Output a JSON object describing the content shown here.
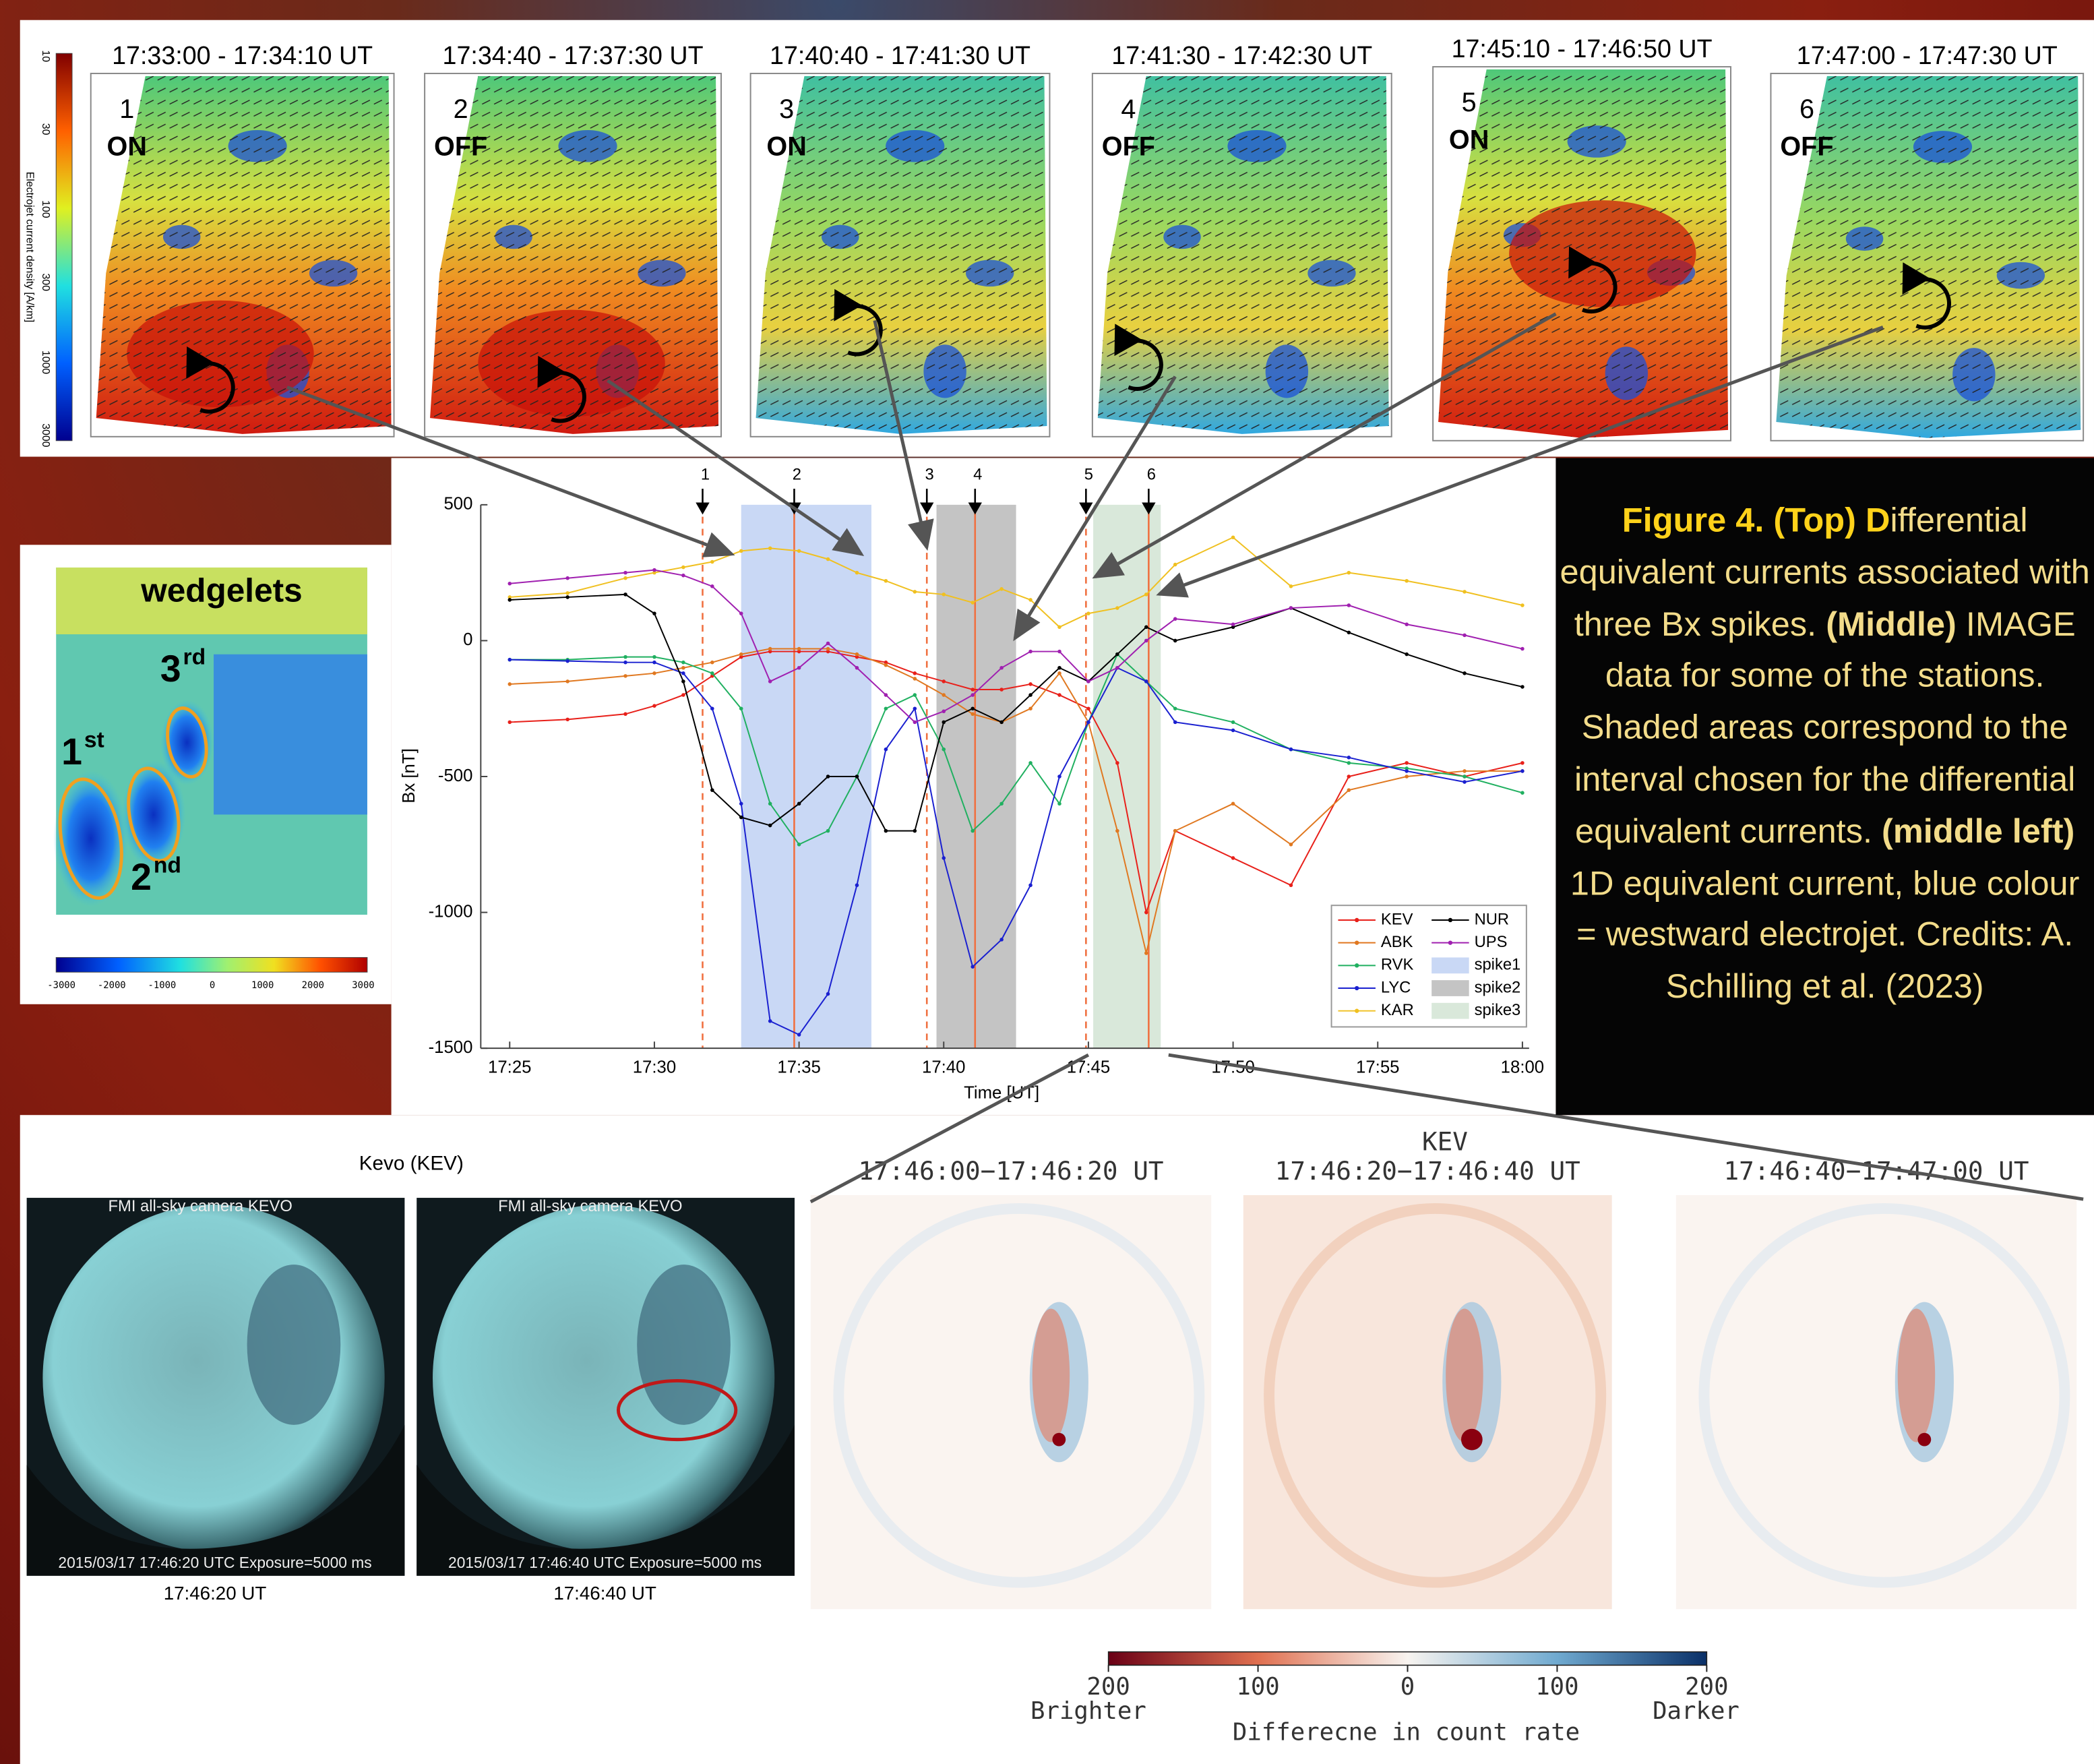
{
  "top_panels": [
    {
      "title": "17:33:00 - 17:34:10 UT",
      "number": "1",
      "state": "ON"
    },
    {
      "title": "17:34:40 - 17:37:30 UT",
      "number": "2",
      "state": "OFF"
    },
    {
      "title": "17:40:40 - 17:41:30 UT",
      "number": "3",
      "state": "ON"
    },
    {
      "title": "17:41:30 - 17:42:30 UT",
      "number": "4",
      "state": "OFF"
    },
    {
      "title": "17:45:10 - 17:46:50 UT",
      "number": "5",
      "state": "ON"
    },
    {
      "title": "17:47:00 - 17:47:30 UT",
      "number": "6",
      "state": "OFF"
    }
  ],
  "top_colorbar": {
    "label": "Electrojet current density [A/km]",
    "ticks": [
      10,
      30,
      100,
      300,
      1000,
      3000
    ]
  },
  "wedgelets": {
    "title": "wedgelets",
    "labels": [
      {
        "text": "1",
        "sup": "st"
      },
      {
        "text": "2",
        "sup": "nd"
      },
      {
        "text": "3",
        "sup": "rd"
      }
    ],
    "colorbar_ticks": [
      -3000,
      -2000,
      -1000,
      0,
      1000,
      2000,
      3000
    ]
  },
  "chart_data": {
    "type": "line",
    "x_label": "Time [UT]",
    "y_label": "Bx [nT]",
    "x": [
      "17:25",
      "17:27",
      "17:29",
      "17:30",
      "17:31",
      "17:32",
      "17:33",
      "17:34",
      "17:35",
      "17:36",
      "17:37",
      "17:38",
      "17:39",
      "17:40",
      "17:41",
      "17:42",
      "17:43",
      "17:44",
      "17:45",
      "17:46",
      "17:47",
      "17:48",
      "17:50",
      "17:52",
      "17:54",
      "17:56",
      "17:58",
      "18:00"
    ],
    "xlim": [
      "17:24",
      "18:00"
    ],
    "xticks": [
      "17:25",
      "17:30",
      "17:35",
      "17:40",
      "17:45",
      "17:50",
      "17:55",
      "18:00"
    ],
    "ylim": [
      -1500,
      500
    ],
    "yticks": [
      -1500,
      -1000,
      -500,
      0,
      500
    ],
    "legend": "lower right",
    "series": [
      {
        "name": "KEV",
        "color": "#e8201a",
        "values": [
          -300,
          -290,
          -270,
          -240,
          -200,
          -130,
          -60,
          -40,
          -40,
          -40,
          -60,
          -80,
          -120,
          -150,
          -180,
          -180,
          -160,
          -200,
          -250,
          -450,
          -1000,
          -700,
          -800,
          -900,
          -500,
          -450,
          -500,
          -450
        ]
      },
      {
        "name": "ABK",
        "color": "#e07820",
        "values": [
          -160,
          -150,
          -130,
          -120,
          -100,
          -80,
          -50,
          -30,
          -30,
          -30,
          -50,
          -90,
          -140,
          -200,
          -270,
          -300,
          -250,
          -120,
          -300,
          -700,
          -1150,
          -700,
          -600,
          -750,
          -550,
          -500,
          -480,
          -480
        ]
      },
      {
        "name": "RVK",
        "color": "#20b060",
        "values": [
          -70,
          -70,
          -60,
          -60,
          -80,
          -120,
          -250,
          -600,
          -750,
          -700,
          -500,
          -250,
          -200,
          -400,
          -700,
          -600,
          -450,
          -600,
          -300,
          -50,
          -150,
          -250,
          -300,
          -400,
          -450,
          -470,
          -500,
          -560
        ]
      },
      {
        "name": "LYC",
        "color": "#1a20d0",
        "values": [
          -70,
          -75,
          -80,
          -80,
          -120,
          -250,
          -600,
          -1400,
          -1450,
          -1300,
          -900,
          -400,
          -250,
          -800,
          -1200,
          -1100,
          -900,
          -500,
          -300,
          -100,
          -150,
          -300,
          -330,
          -400,
          -430,
          -480,
          -520,
          -480
        ]
      },
      {
        "name": "KAR",
        "color": "#f0c020",
        "values": [
          160,
          175,
          230,
          250,
          270,
          290,
          330,
          340,
          330,
          300,
          250,
          220,
          180,
          170,
          140,
          190,
          150,
          50,
          100,
          120,
          170,
          280,
          380,
          200,
          250,
          220,
          180,
          130
        ]
      },
      {
        "name": "NUR",
        "color": "#000000",
        "values": [
          150,
          160,
          170,
          100,
          -150,
          -550,
          -650,
          -680,
          -600,
          -500,
          -500,
          -700,
          -700,
          -300,
          -250,
          -300,
          -200,
          -100,
          -150,
          -50,
          50,
          0,
          50,
          120,
          30,
          -50,
          -120,
          -170
        ]
      },
      {
        "name": "UPS",
        "color": "#a020b0",
        "values": [
          210,
          230,
          250,
          260,
          240,
          200,
          100,
          -150,
          -100,
          -10,
          -100,
          -200,
          -300,
          -260,
          -200,
          -100,
          -40,
          -40,
          -150,
          -100,
          0,
          80,
          60,
          120,
          130,
          60,
          20,
          -30
        ]
      }
    ],
    "spans": [
      {
        "name": "spike1",
        "start": "17:33:00",
        "end": "17:37:30",
        "color": "#c9d8f5"
      },
      {
        "name": "spike2",
        "start": "17:39:45",
        "end": "17:42:30",
        "color": "#c4c4c4"
      },
      {
        "name": "spike3",
        "start": "17:45:10",
        "end": "17:47:30",
        "color": "#d9e8da"
      }
    ],
    "events": [
      {
        "label": "1",
        "x": "17:31:40",
        "style": "dashed"
      },
      {
        "label": "2",
        "x": "17:34:50",
        "style": "solid"
      },
      {
        "label": "3",
        "x": "17:39:25",
        "style": "dashed"
      },
      {
        "label": "4",
        "x": "17:41:05",
        "style": "solid"
      },
      {
        "label": "5",
        "x": "17:44:55",
        "style": "dashed"
      },
      {
        "label": "6",
        "x": "17:47:05",
        "style": "solid"
      }
    ]
  },
  "caption": {
    "segments": [
      {
        "text": "Figure 4. (Top) D",
        "style": "highlight"
      },
      {
        "text": "ifferential equivalent currents associated with three Bx spikes. ",
        "style": "normal"
      },
      {
        "text": "(Middle)",
        "style": "bold"
      },
      {
        "text": " IMAGE data for some of the stations. Shaded areas correspond to the interval chosen for the differential equivalent currents. ",
        "style": "normal"
      },
      {
        "text": "(middle left)",
        "style": "bold"
      },
      {
        "text": " 1D equivalent current, blue colour = westward electrojet. Credits: A. Schilling et al. (2023)",
        "style": "normal"
      }
    ]
  },
  "cameras": {
    "station": "Kevo (KEV)",
    "images": [
      {
        "header": "FMI all-sky camera KEVO",
        "footer": "2015/03/17 17:46:20 UTC Exposure=5000 ms",
        "time": "17:46:20 UT"
      },
      {
        "header": "FMI all-sky camera KEVO",
        "footer": "2015/03/17 17:46:40 UTC Exposure=5000 ms",
        "time": "17:46:40 UT"
      }
    ]
  },
  "difference": {
    "station": "KEV",
    "titles": [
      "17:46:00−17:46:20 UT",
      "17:46:20−17:46:40 UT",
      "17:46:40−17:47:00 UT"
    ],
    "colorbar": {
      "ticks": [
        {
          "value": -200,
          "label": "200"
        },
        {
          "value": -100,
          "label": "100"
        },
        0,
        100,
        200
      ],
      "left": "Brighter",
      "right": "Darker",
      "label": "Differecne in count rate"
    }
  }
}
